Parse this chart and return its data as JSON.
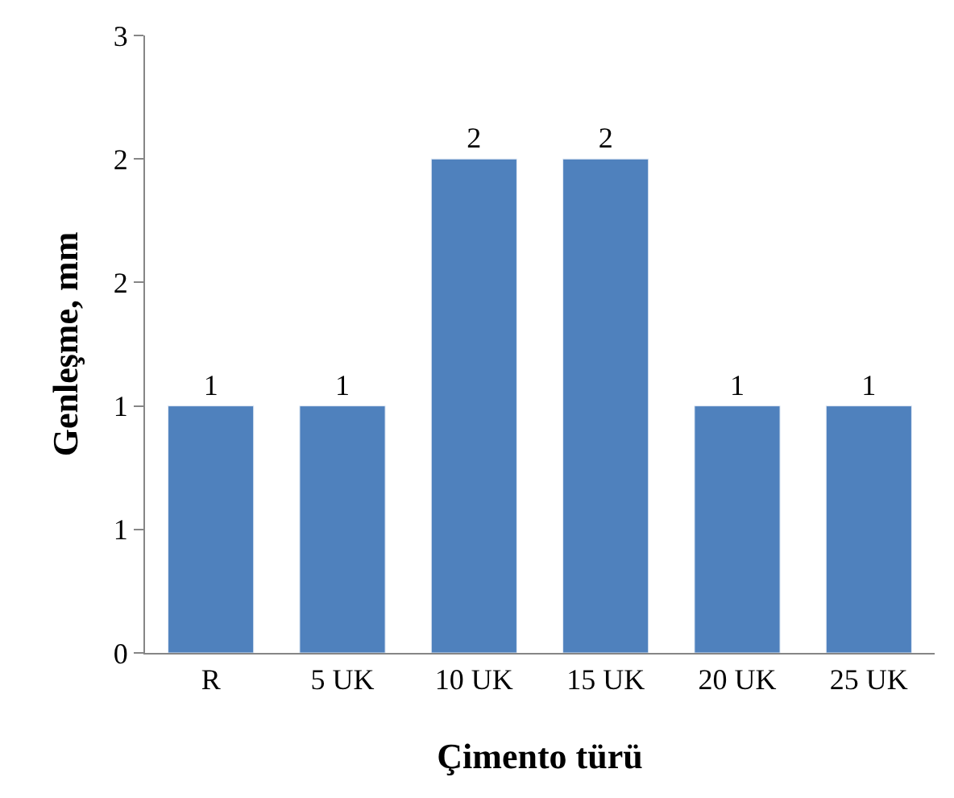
{
  "chart_data": {
    "type": "bar",
    "xlabel": "Çimento türü",
    "ylabel": "Genleşme, mm",
    "categories": [
      "R",
      "5 UK",
      "10 UK",
      "15 UK",
      "20 UK",
      "25 UK"
    ],
    "values": [
      1.2,
      1.2,
      2.4,
      2.4,
      1.2,
      1.2
    ],
    "color": "#4f81bd",
    "value_labels": [
      "1",
      "1",
      "2",
      "2",
      "1",
      "1"
    ],
    "ylim": [
      0,
      3
    ],
    "yticks": [
      0,
      {
        "value": 0.6,
        "label": "1"
      },
      {
        "value": 1.2,
        "label": "1"
      },
      {
        "value": 1.8,
        "label": "2"
      },
      {
        "value": 2.4,
        "label": "2"
      },
      3
    ],
    "legend": false
  }
}
